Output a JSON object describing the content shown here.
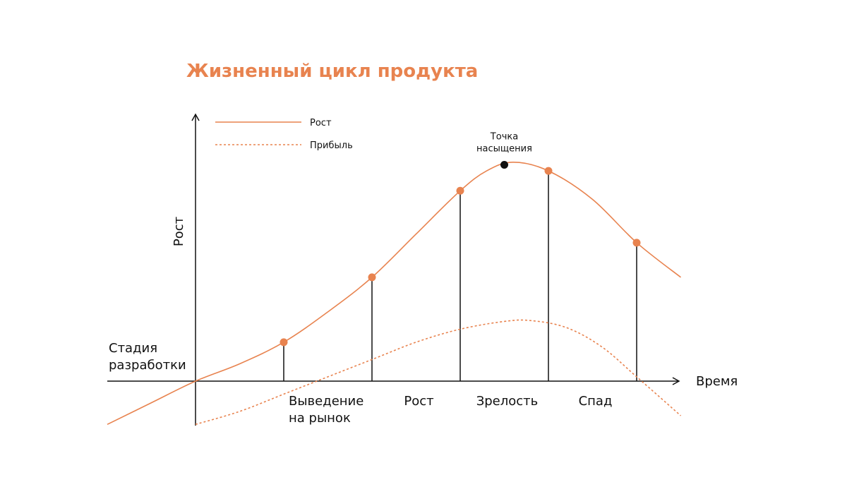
{
  "colors": {
    "accent": "#E8834F",
    "ink": "#111111",
    "background": "#FFFFFF"
  },
  "chart_data": {
    "type": "line",
    "title": "Жизненный цикл продукта",
    "xlabel": "Время",
    "ylabel": "Рост",
    "xlim": [
      -1,
      5.5
    ],
    "ylim": [
      -0.6,
      3.4
    ],
    "grid": false,
    "legend_position": "top-left",
    "legend": [
      {
        "label": "Рост",
        "style": "solid"
      },
      {
        "label": "Прибыль",
        "style": "dotted"
      }
    ],
    "series": [
      {
        "name": "Рост",
        "style": "solid",
        "x": [
          -1,
          -0.5,
          0,
          0.5,
          1,
          1.5,
          2,
          2.5,
          3,
          3.3,
          3.6,
          4,
          4.5,
          5,
          5.5
        ],
        "y": [
          -0.5,
          -0.25,
          0,
          0.2,
          0.45,
          0.8,
          1.2,
          1.7,
          2.2,
          2.43,
          2.53,
          2.43,
          2.1,
          1.6,
          1.2
        ]
      },
      {
        "name": "Прибыль",
        "style": "dotted",
        "x": [
          0,
          0.5,
          1,
          1.5,
          2,
          2.5,
          3,
          3.5,
          3.8,
          4.2,
          4.6,
          5,
          5.5
        ],
        "y": [
          -0.5,
          -0.35,
          -0.15,
          0.05,
          0.25,
          0.45,
          0.6,
          0.69,
          0.7,
          0.62,
          0.4,
          0.05,
          -0.4
        ]
      }
    ],
    "markers": [
      {
        "x": 1,
        "y": 0.45,
        "drop_line": true
      },
      {
        "x": 2,
        "y": 1.2,
        "drop_line": true
      },
      {
        "x": 3,
        "y": 2.2,
        "drop_line": true
      },
      {
        "x": 3.5,
        "y": 2.5,
        "drop_line": false,
        "highlight": true,
        "label": "Точка\nнасыщения"
      },
      {
        "x": 4,
        "y": 2.43,
        "drop_line": true
      },
      {
        "x": 5,
        "y": 1.6,
        "drop_line": true
      }
    ],
    "stages": [
      {
        "label": "Стадия\nразработки",
        "x_from": -1,
        "x_to": 0,
        "position": "above"
      },
      {
        "label": "Выведение\nна рынок",
        "x_from": 1,
        "x_to": 2,
        "position": "below"
      },
      {
        "label": "Рост",
        "x_from": 2,
        "x_to": 3,
        "position": "below"
      },
      {
        "label": "Зрелость",
        "x_from": 3,
        "x_to": 4,
        "position": "below"
      },
      {
        "label": "Спад",
        "x_from": 4,
        "x_to": 5,
        "position": "below"
      }
    ]
  }
}
